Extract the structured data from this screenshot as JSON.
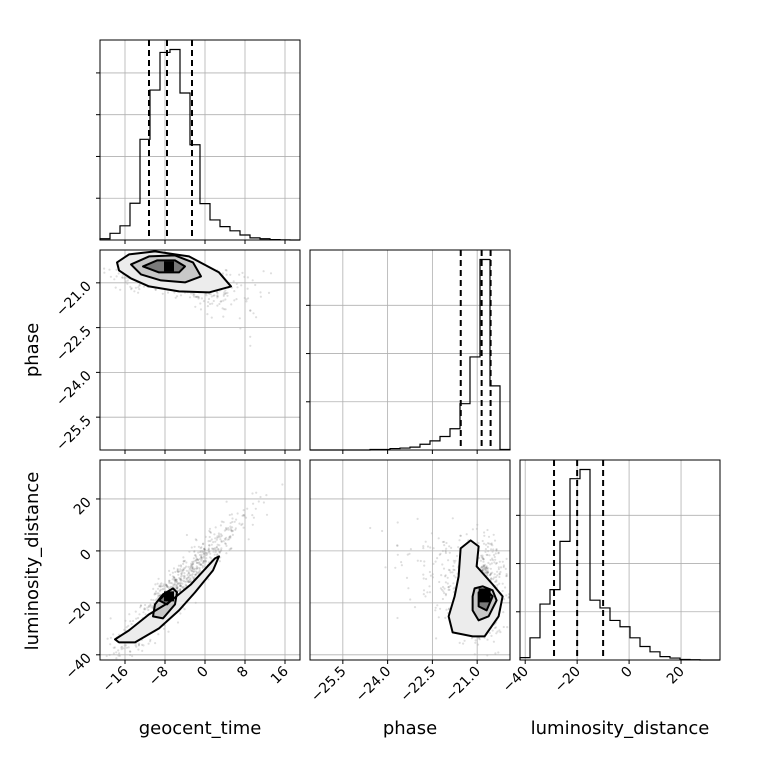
{
  "chart_data": {
    "type": "corner",
    "parameters": [
      "geocent_time",
      "phase",
      "luminosity_distance"
    ],
    "axis_labels": {
      "x": [
        "geocent_time",
        "phase",
        "luminosity_distance"
      ],
      "y": [
        "phase",
        "luminosity_distance"
      ]
    },
    "ranges": {
      "geocent_time": [
        -21,
        19
      ],
      "phase": [
        -26.6,
        -19.9
      ],
      "luminosity_distance": [
        -42,
        35
      ]
    },
    "ticks": {
      "geocent_time": [
        -16,
        -8,
        0,
        8,
        16
      ],
      "phase": [
        -25.5,
        -24.0,
        -22.5,
        -21.0
      ],
      "luminosity_distance": [
        -40,
        -20,
        0,
        20
      ]
    },
    "tick_labels": {
      "geocent_time": [
        "−16",
        "−8",
        "0",
        "8",
        "16"
      ],
      "phase": [
        "−25.5",
        "−24.0",
        "−22.5",
        "−21.0"
      ],
      "luminosity_distance": [
        "−40",
        "−20",
        "0",
        "20"
      ]
    },
    "histograms": [
      {
        "param": "geocent_time",
        "bin_edges": [
          -21,
          -19,
          -17,
          -15,
          -13,
          -11,
          -9,
          -7,
          -5,
          -3,
          -1,
          1,
          3,
          5,
          7,
          9,
          11,
          13,
          15,
          17,
          19
        ],
        "counts": [
          0.3,
          1.6,
          3.4,
          8.8,
          24.1,
          35.9,
          44.9,
          45.6,
          35.2,
          22.8,
          8.7,
          4.8,
          3.2,
          2.2,
          1.2,
          0.5,
          0.3,
          0.1,
          0.05,
          0
        ],
        "quantiles": [
          -11.2,
          -7.6,
          -2.6
        ]
      },
      {
        "param": "phase",
        "bin_edges": [
          -26.6,
          -26.265,
          -25.93,
          -25.595,
          -25.26,
          -24.925,
          -24.59,
          -24.255,
          -23.92,
          -23.585,
          -23.25,
          -22.915,
          -22.58,
          -22.245,
          -21.91,
          -21.575,
          -21.24,
          -20.905,
          -20.57,
          -20.235,
          -19.9
        ],
        "counts": [
          0,
          0,
          0,
          0,
          0,
          0,
          0.1,
          0.1,
          0.3,
          0.4,
          0.6,
          1.2,
          1.9,
          2.8,
          4.4,
          9.6,
          19.3,
          39.5,
          13.3,
          0.1
        ],
        "quantiles": [
          -21.55,
          -20.85,
          -20.55
        ]
      },
      {
        "param": "luminosity_distance",
        "bin_edges": [
          -42,
          -38.15,
          -34.3,
          -30.45,
          -26.6,
          -22.75,
          -18.9,
          -15.05,
          -11.2,
          -7.35,
          -3.5,
          0.35,
          4.2,
          8.05,
          11.9,
          15.75,
          19.6,
          23.45,
          27.3,
          31.15,
          35
        ],
        "counts": [
          0.5,
          4.6,
          11.6,
          14.6,
          24.6,
          37.6,
          39.5,
          12.4,
          10.8,
          8.2,
          6.9,
          4.6,
          2.8,
          1.7,
          0.7,
          0.4,
          0.1,
          0.05,
          0,
          0
        ],
        "quantiles": [
          -28.9,
          -20.0,
          -10.0
        ]
      }
    ],
    "pair_peaks": [
      {
        "x": "geocent_time",
        "y": "phase",
        "peak": [
          -7.2,
          -20.45
        ]
      },
      {
        "x": "geocent_time",
        "y": "luminosity_distance",
        "peak": [
          -7.2,
          -17.5
        ]
      },
      {
        "x": "phase",
        "y": "luminosity_distance",
        "peak": [
          -20.75,
          -17.5
        ]
      }
    ],
    "grid": true,
    "legend": "none"
  }
}
